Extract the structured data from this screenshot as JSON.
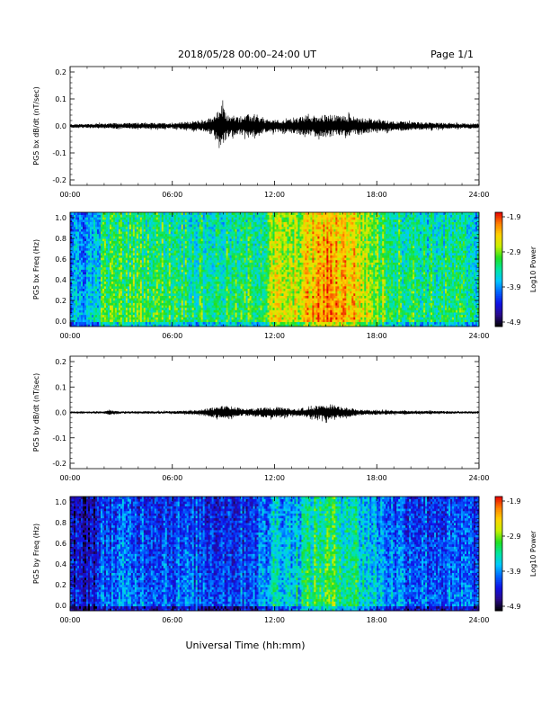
{
  "header": {
    "title": "2018/05/28  00:00–24:00 UT",
    "page": "Page 1/1"
  },
  "x_axis_title": "Universal Time (hh:mm)",
  "colors": {
    "colormap": [
      "#000000",
      "#2a0a8a",
      "#1010e6",
      "#0064ff",
      "#00c8ff",
      "#00e6a0",
      "#20e020",
      "#c8f000",
      "#ffd200",
      "#ff8000",
      "#e60000"
    ]
  },
  "chart_data": [
    {
      "type": "line",
      "title": "",
      "ylabel": "PG5 bx dB/dt (nT/sec)",
      "xlabel": "",
      "x_ticks": [
        "00:00",
        "06:00",
        "12:00",
        "18:00",
        "24:00"
      ],
      "xlim": [
        0,
        24
      ],
      "ylim": [
        -0.2,
        0.2
      ],
      "y_ticks": [
        "0.2",
        "0.1",
        "0.0",
        "-0.1",
        "-0.2"
      ],
      "baseline": 0.0,
      "envelope": [
        {
          "t": 0,
          "amp": 0.006
        },
        {
          "t": 1.5,
          "amp": 0.008
        },
        {
          "t": 3,
          "amp": 0.01
        },
        {
          "t": 6,
          "amp": 0.01
        },
        {
          "t": 8,
          "amp": 0.02
        },
        {
          "t": 8.6,
          "amp": 0.045
        },
        {
          "t": 8.9,
          "amp": 0.07
        },
        {
          "t": 9.3,
          "amp": 0.035
        },
        {
          "t": 10,
          "amp": 0.03
        },
        {
          "t": 10.5,
          "amp": 0.04
        },
        {
          "t": 11.5,
          "amp": 0.022
        },
        {
          "t": 12.5,
          "amp": 0.02
        },
        {
          "t": 14,
          "amp": 0.035
        },
        {
          "t": 15,
          "amp": 0.038
        },
        {
          "t": 16,
          "amp": 0.036
        },
        {
          "t": 17,
          "amp": 0.03
        },
        {
          "t": 18,
          "amp": 0.02
        },
        {
          "t": 20,
          "amp": 0.014
        },
        {
          "t": 22,
          "amp": 0.01
        },
        {
          "t": 24,
          "amp": 0.008
        }
      ]
    },
    {
      "type": "heatmap",
      "title": "",
      "ylabel": "PG5 bx Freq (Hz)",
      "xlabel": "",
      "x_ticks": [
        "00:00",
        "06:00",
        "12:00",
        "18:00",
        "24:00"
      ],
      "xlim": [
        0,
        24
      ],
      "ylim": [
        0,
        1.0
      ],
      "y_ticks": [
        "1.0",
        "0.8",
        "0.6",
        "0.4",
        "0.2",
        "0.0"
      ],
      "colorbar": {
        "label": "Log10 Power",
        "ticks": [
          "-1.9",
          "-2.9",
          "-3.9",
          "-4.9"
        ],
        "range": [
          -4.9,
          -1.9
        ]
      },
      "intensity_profile": [
        {
          "t": 0,
          "v": 0.35
        },
        {
          "t": 1.5,
          "v": 0.45
        },
        {
          "t": 2,
          "v": 0.6
        },
        {
          "t": 4,
          "v": 0.62
        },
        {
          "t": 6,
          "v": 0.6
        },
        {
          "t": 8,
          "v": 0.55
        },
        {
          "t": 10,
          "v": 0.55
        },
        {
          "t": 11.5,
          "v": 0.62
        },
        {
          "t": 12,
          "v": 0.75
        },
        {
          "t": 13,
          "v": 0.7
        },
        {
          "t": 14,
          "v": 0.82
        },
        {
          "t": 15,
          "v": 0.9
        },
        {
          "t": 16.5,
          "v": 0.85
        },
        {
          "t": 17.5,
          "v": 0.72
        },
        {
          "t": 19,
          "v": 0.6
        },
        {
          "t": 21,
          "v": 0.55
        },
        {
          "t": 24,
          "v": 0.52
        }
      ]
    },
    {
      "type": "line",
      "title": "",
      "ylabel": "PG5 by dB/dt (nT/sec)",
      "xlabel": "",
      "x_ticks": [
        "00:00",
        "06:00",
        "12:00",
        "18:00",
        "24:00"
      ],
      "xlim": [
        0,
        24
      ],
      "ylim": [
        -0.2,
        0.2
      ],
      "y_ticks": [
        "0.2",
        "0.1",
        "0.0",
        "-0.1",
        "-0.2"
      ],
      "baseline": 0.0,
      "envelope": [
        {
          "t": 0,
          "amp": 0.003
        },
        {
          "t": 2,
          "amp": 0.004
        },
        {
          "t": 2.3,
          "amp": 0.01
        },
        {
          "t": 3,
          "amp": 0.004
        },
        {
          "t": 6,
          "amp": 0.005
        },
        {
          "t": 7.5,
          "amp": 0.008
        },
        {
          "t": 8.5,
          "amp": 0.02
        },
        {
          "t": 9.3,
          "amp": 0.025
        },
        {
          "t": 10.2,
          "amp": 0.012
        },
        {
          "t": 11.5,
          "amp": 0.018
        },
        {
          "t": 12.2,
          "amp": 0.02
        },
        {
          "t": 13,
          "amp": 0.012
        },
        {
          "t": 14.3,
          "amp": 0.02
        },
        {
          "t": 15.3,
          "amp": 0.03
        },
        {
          "t": 16,
          "amp": 0.02
        },
        {
          "t": 17,
          "amp": 0.01
        },
        {
          "t": 19,
          "amp": 0.007
        },
        {
          "t": 24,
          "amp": 0.004
        }
      ]
    },
    {
      "type": "heatmap",
      "title": "",
      "ylabel": "PG5 by Freq (Hz)",
      "xlabel": "",
      "x_ticks": [
        "00:00",
        "06:00",
        "12:00",
        "18:00",
        "24:00"
      ],
      "xlim": [
        0,
        24
      ],
      "ylim": [
        0,
        1.0
      ],
      "y_ticks": [
        "1.0",
        "0.8",
        "0.6",
        "0.4",
        "0.2",
        "0.0"
      ],
      "colorbar": {
        "label": "Log10 Power",
        "ticks": [
          "-1.9",
          "-2.9",
          "-3.9",
          "-4.9"
        ],
        "range": [
          -4.9,
          -1.9
        ]
      },
      "intensity_profile": [
        {
          "t": 0,
          "v": 0.18
        },
        {
          "t": 1.5,
          "v": 0.22
        },
        {
          "t": 2,
          "v": 0.32
        },
        {
          "t": 4,
          "v": 0.34
        },
        {
          "t": 6,
          "v": 0.32
        },
        {
          "t": 8,
          "v": 0.3
        },
        {
          "t": 10,
          "v": 0.3
        },
        {
          "t": 11.5,
          "v": 0.36
        },
        {
          "t": 12,
          "v": 0.5
        },
        {
          "t": 13,
          "v": 0.44
        },
        {
          "t": 14,
          "v": 0.55
        },
        {
          "t": 15,
          "v": 0.6
        },
        {
          "t": 16.5,
          "v": 0.56
        },
        {
          "t": 17.5,
          "v": 0.46
        },
        {
          "t": 19,
          "v": 0.36
        },
        {
          "t": 21,
          "v": 0.32
        },
        {
          "t": 24,
          "v": 0.3
        }
      ]
    }
  ]
}
